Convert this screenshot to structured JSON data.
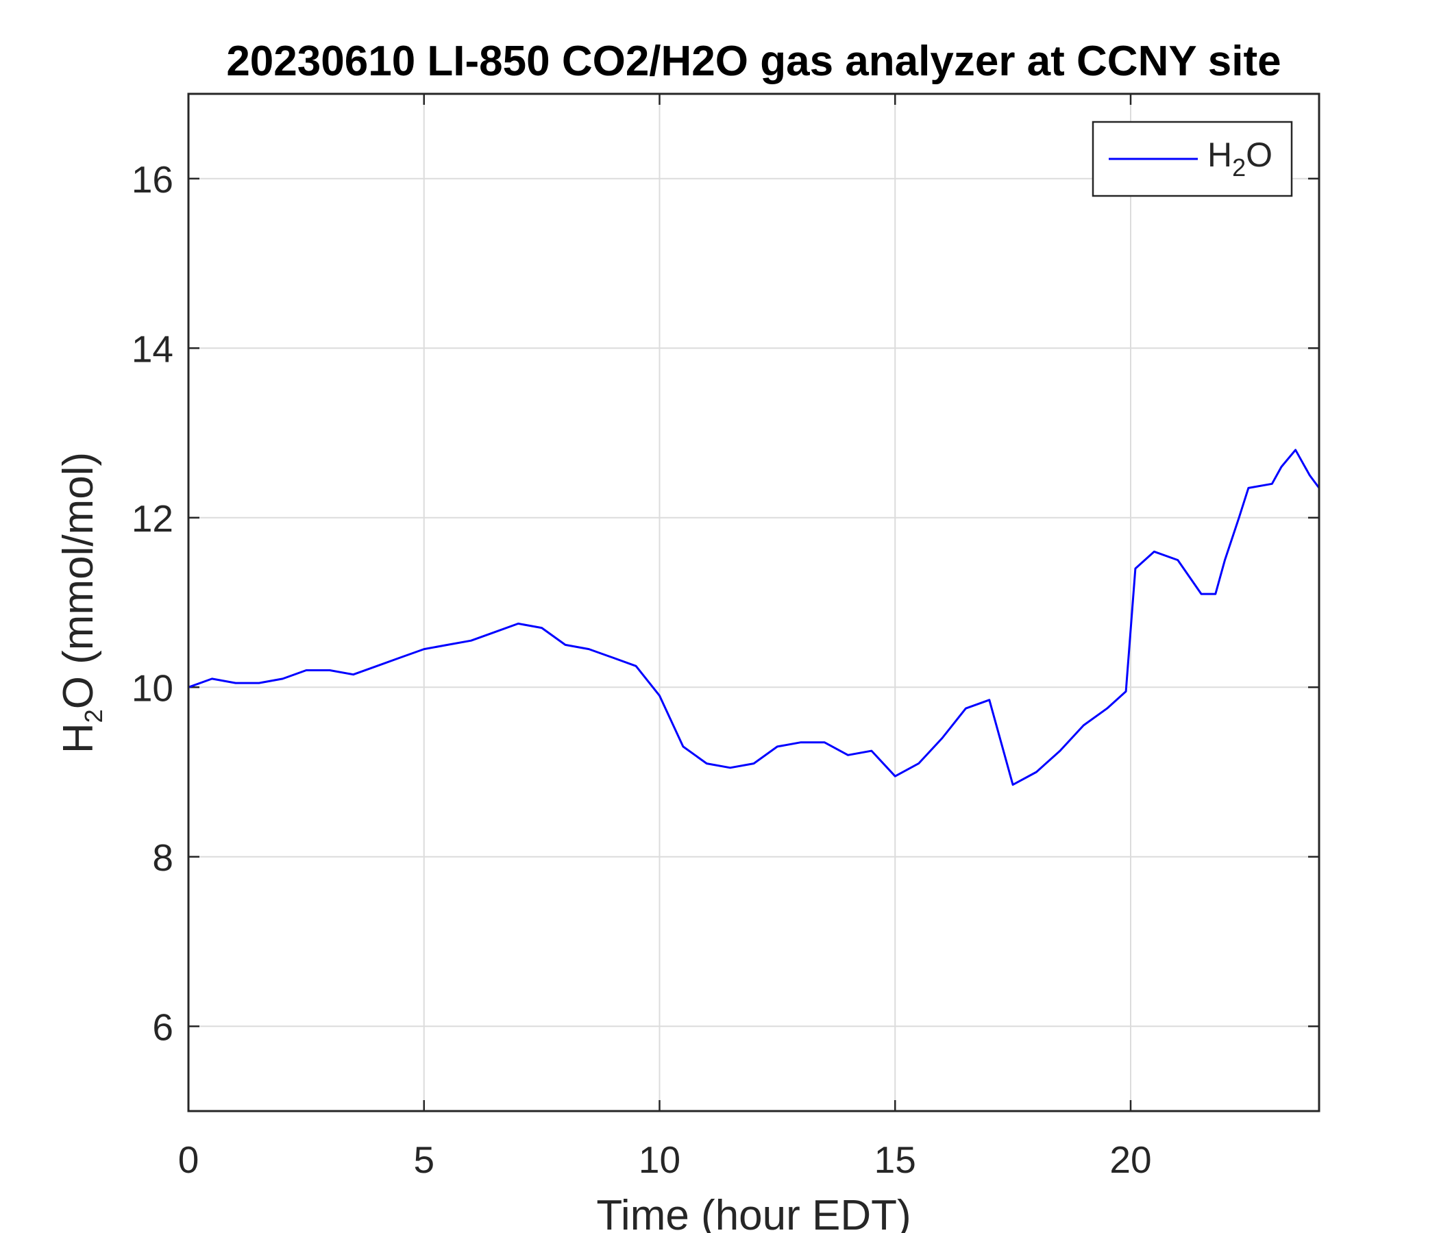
{
  "chart_data": {
    "type": "line",
    "title": "20230610 LI-850 CO2/H2O gas analyzer at CCNY site",
    "xlabel": "Time (hour EDT)",
    "ylabel": {
      "main": "H",
      "sub": "2",
      "rest": "O (mmol/mol)"
    },
    "xlim": [
      0,
      24
    ],
    "ylim": [
      5,
      17
    ],
    "xticks": [
      0,
      5,
      10,
      15,
      20
    ],
    "yticks": [
      6,
      8,
      10,
      12,
      14,
      16
    ],
    "grid": true,
    "legend_position": "top-right",
    "legend": {
      "main": "H",
      "sub": "2",
      "rest": "O"
    },
    "series": [
      {
        "name": "H2O",
        "color": "#0000ff",
        "x": [
          0,
          0.5,
          1,
          1.5,
          2,
          2.5,
          3,
          3.5,
          4,
          4.5,
          5,
          5.5,
          6,
          6.5,
          7,
          7.5,
          8,
          8.5,
          9,
          9.5,
          10,
          10.5,
          11,
          11.5,
          12,
          12.5,
          13,
          13.5,
          14,
          14.5,
          15,
          15.5,
          16,
          16.5,
          17,
          17.5,
          18,
          18.5,
          19,
          19.5,
          19.9,
          20.1,
          20.5,
          21,
          21.5,
          21.8,
          22,
          22.3,
          22.5,
          23,
          23.2,
          23.5,
          23.8,
          24
        ],
        "y": [
          10.0,
          10.1,
          10.05,
          10.05,
          10.1,
          10.2,
          10.2,
          10.15,
          10.25,
          10.35,
          10.45,
          10.5,
          10.55,
          10.65,
          10.75,
          10.7,
          10.5,
          10.45,
          10.35,
          10.25,
          9.9,
          9.3,
          9.1,
          9.05,
          9.1,
          9.3,
          9.35,
          9.35,
          9.2,
          9.25,
          8.95,
          9.1,
          9.4,
          9.75,
          9.85,
          8.85,
          9.0,
          9.25,
          9.55,
          9.75,
          9.95,
          11.4,
          11.6,
          11.5,
          11.1,
          11.1,
          11.5,
          12.0,
          12.35,
          12.4,
          12.6,
          12.8,
          12.5,
          12.35
        ]
      }
    ]
  }
}
